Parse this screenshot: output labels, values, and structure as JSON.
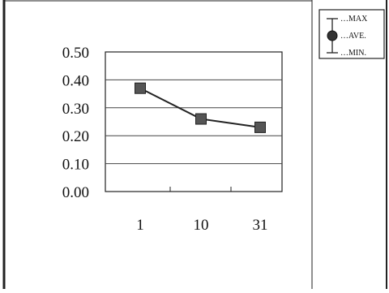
{
  "chart_data": {
    "type": "line",
    "categories": [
      "1",
      "10",
      "31"
    ],
    "series": [
      {
        "name": "AVE.",
        "values": [
          0.37,
          0.26,
          0.23
        ],
        "min": [
          0.36,
          0.25,
          0.22
        ],
        "max": [
          0.38,
          0.27,
          0.24
        ]
      }
    ],
    "y_ticks": [
      "0.50",
      "0.40",
      "0.30",
      "0.20",
      "0.10",
      "0.00"
    ],
    "ylim": [
      0,
      0.5
    ],
    "grid": true,
    "legend": {
      "placement": "top-right",
      "items": [
        "MAX",
        "AVE.",
        "MIN."
      ]
    },
    "title": "",
    "xlabel": "",
    "ylabel": ""
  }
}
